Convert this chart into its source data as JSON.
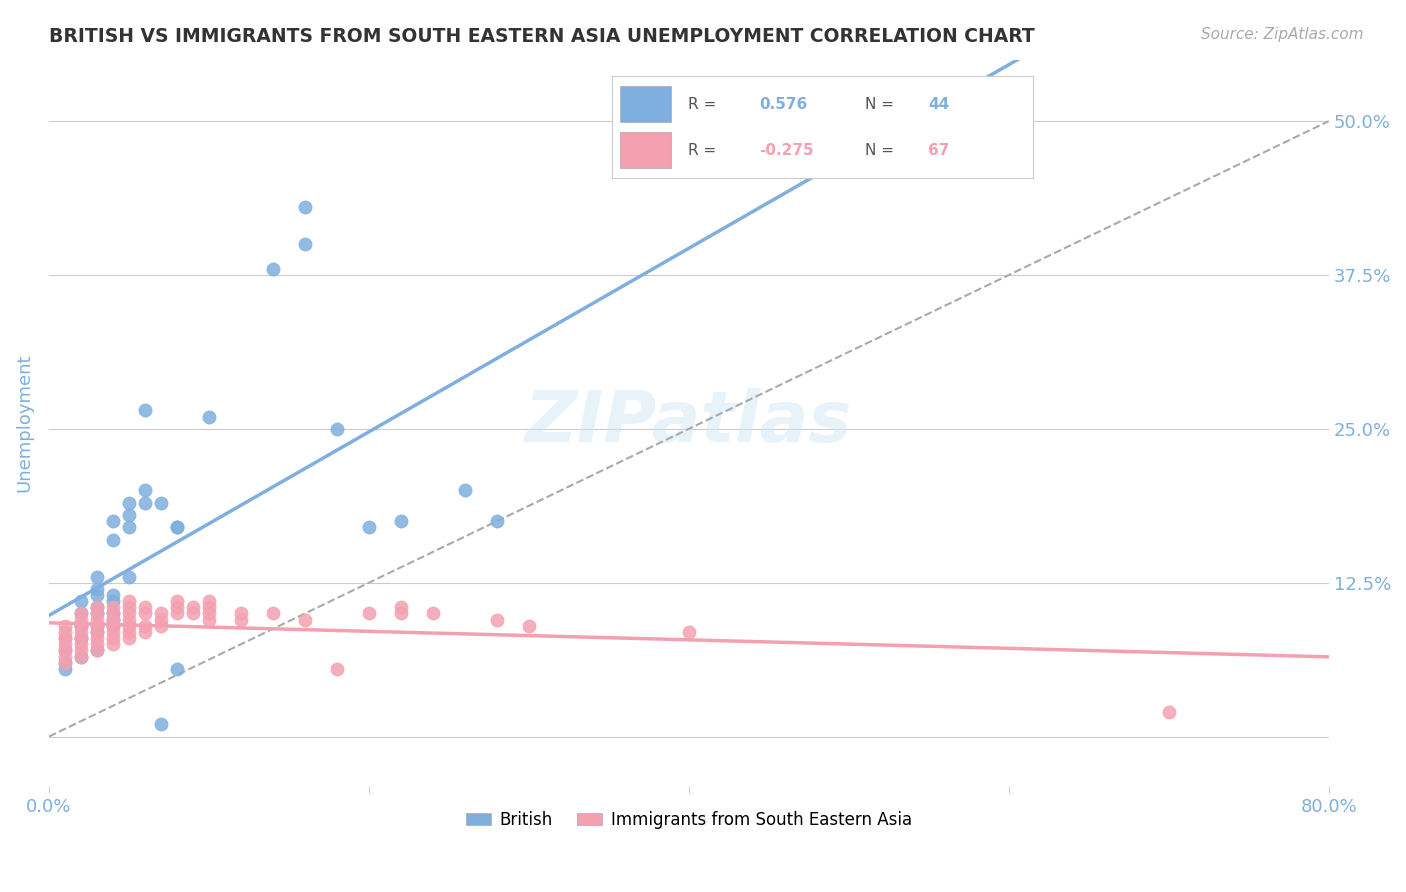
{
  "title": "BRITISH VS IMMIGRANTS FROM SOUTH EASTERN ASIA UNEMPLOYMENT CORRELATION CHART",
  "source": "Source: ZipAtlas.com",
  "ylabel": "Unemployment",
  "xlabel": "",
  "xlim": [
    0.0,
    0.8
  ],
  "ylim": [
    -0.04,
    0.55
  ],
  "yticks": [
    0.0,
    0.125,
    0.25,
    0.375,
    0.5
  ],
  "ytick_labels": [
    "",
    "12.5%",
    "25.0%",
    "37.5%",
    "50.0%"
  ],
  "xticks": [
    0.0,
    0.2,
    0.4,
    0.6,
    0.8
  ],
  "xtick_labels": [
    "0.0%",
    "",
    "",
    "",
    "80.0%"
  ],
  "british_color": "#7fafdf",
  "immigrant_color": "#f4a0b0",
  "british_R": 0.576,
  "british_N": 44,
  "immigrant_R": -0.275,
  "immigrant_N": 67,
  "watermark": "ZIPatlas",
  "british_scatter": [
    [
      0.01,
      0.06
    ],
    [
      0.01,
      0.07
    ],
    [
      0.01,
      0.055
    ],
    [
      0.02,
      0.065
    ],
    [
      0.02,
      0.08
    ],
    [
      0.02,
      0.09
    ],
    [
      0.02,
      0.1
    ],
    [
      0.02,
      0.11
    ],
    [
      0.03,
      0.07
    ],
    [
      0.03,
      0.085
    ],
    [
      0.03,
      0.09
    ],
    [
      0.03,
      0.1
    ],
    [
      0.03,
      0.105
    ],
    [
      0.03,
      0.115
    ],
    [
      0.03,
      0.12
    ],
    [
      0.03,
      0.13
    ],
    [
      0.04,
      0.09
    ],
    [
      0.04,
      0.095
    ],
    [
      0.04,
      0.1
    ],
    [
      0.04,
      0.11
    ],
    [
      0.04,
      0.115
    ],
    [
      0.04,
      0.16
    ],
    [
      0.04,
      0.175
    ],
    [
      0.05,
      0.17
    ],
    [
      0.05,
      0.18
    ],
    [
      0.05,
      0.19
    ],
    [
      0.05,
      0.13
    ],
    [
      0.06,
      0.19
    ],
    [
      0.06,
      0.2
    ],
    [
      0.06,
      0.265
    ],
    [
      0.07,
      0.19
    ],
    [
      0.07,
      0.01
    ],
    [
      0.08,
      0.055
    ],
    [
      0.08,
      0.17
    ],
    [
      0.08,
      0.17
    ],
    [
      0.1,
      0.26
    ],
    [
      0.14,
      0.38
    ],
    [
      0.16,
      0.43
    ],
    [
      0.16,
      0.4
    ],
    [
      0.18,
      0.25
    ],
    [
      0.2,
      0.17
    ],
    [
      0.22,
      0.175
    ],
    [
      0.26,
      0.2
    ],
    [
      0.28,
      0.175
    ]
  ],
  "immigrant_scatter": [
    [
      0.01,
      0.06
    ],
    [
      0.01,
      0.065
    ],
    [
      0.01,
      0.07
    ],
    [
      0.01,
      0.075
    ],
    [
      0.01,
      0.08
    ],
    [
      0.01,
      0.08
    ],
    [
      0.01,
      0.085
    ],
    [
      0.01,
      0.09
    ],
    [
      0.02,
      0.065
    ],
    [
      0.02,
      0.07
    ],
    [
      0.02,
      0.075
    ],
    [
      0.02,
      0.08
    ],
    [
      0.02,
      0.085
    ],
    [
      0.02,
      0.09
    ],
    [
      0.02,
      0.095
    ],
    [
      0.02,
      0.1
    ],
    [
      0.03,
      0.07
    ],
    [
      0.03,
      0.075
    ],
    [
      0.03,
      0.08
    ],
    [
      0.03,
      0.085
    ],
    [
      0.03,
      0.09
    ],
    [
      0.03,
      0.095
    ],
    [
      0.03,
      0.1
    ],
    [
      0.03,
      0.105
    ],
    [
      0.04,
      0.075
    ],
    [
      0.04,
      0.08
    ],
    [
      0.04,
      0.085
    ],
    [
      0.04,
      0.09
    ],
    [
      0.04,
      0.095
    ],
    [
      0.04,
      0.1
    ],
    [
      0.04,
      0.105
    ],
    [
      0.05,
      0.08
    ],
    [
      0.05,
      0.085
    ],
    [
      0.05,
      0.09
    ],
    [
      0.05,
      0.095
    ],
    [
      0.05,
      0.1
    ],
    [
      0.05,
      0.105
    ],
    [
      0.05,
      0.11
    ],
    [
      0.06,
      0.085
    ],
    [
      0.06,
      0.09
    ],
    [
      0.06,
      0.1
    ],
    [
      0.06,
      0.105
    ],
    [
      0.07,
      0.09
    ],
    [
      0.07,
      0.095
    ],
    [
      0.07,
      0.1
    ],
    [
      0.08,
      0.1
    ],
    [
      0.08,
      0.105
    ],
    [
      0.08,
      0.11
    ],
    [
      0.09,
      0.1
    ],
    [
      0.09,
      0.105
    ],
    [
      0.1,
      0.095
    ],
    [
      0.1,
      0.1
    ],
    [
      0.1,
      0.105
    ],
    [
      0.1,
      0.11
    ],
    [
      0.12,
      0.095
    ],
    [
      0.12,
      0.1
    ],
    [
      0.14,
      0.1
    ],
    [
      0.16,
      0.095
    ],
    [
      0.18,
      0.055
    ],
    [
      0.2,
      0.1
    ],
    [
      0.22,
      0.1
    ],
    [
      0.22,
      0.105
    ],
    [
      0.24,
      0.1
    ],
    [
      0.28,
      0.095
    ],
    [
      0.3,
      0.09
    ],
    [
      0.4,
      0.085
    ],
    [
      0.7,
      0.02
    ]
  ],
  "background_color": "#ffffff",
  "grid_color": "#cccccc",
  "title_color": "#333333",
  "axis_label_color": "#7fafdf",
  "right_tick_color": "#7fafdf"
}
